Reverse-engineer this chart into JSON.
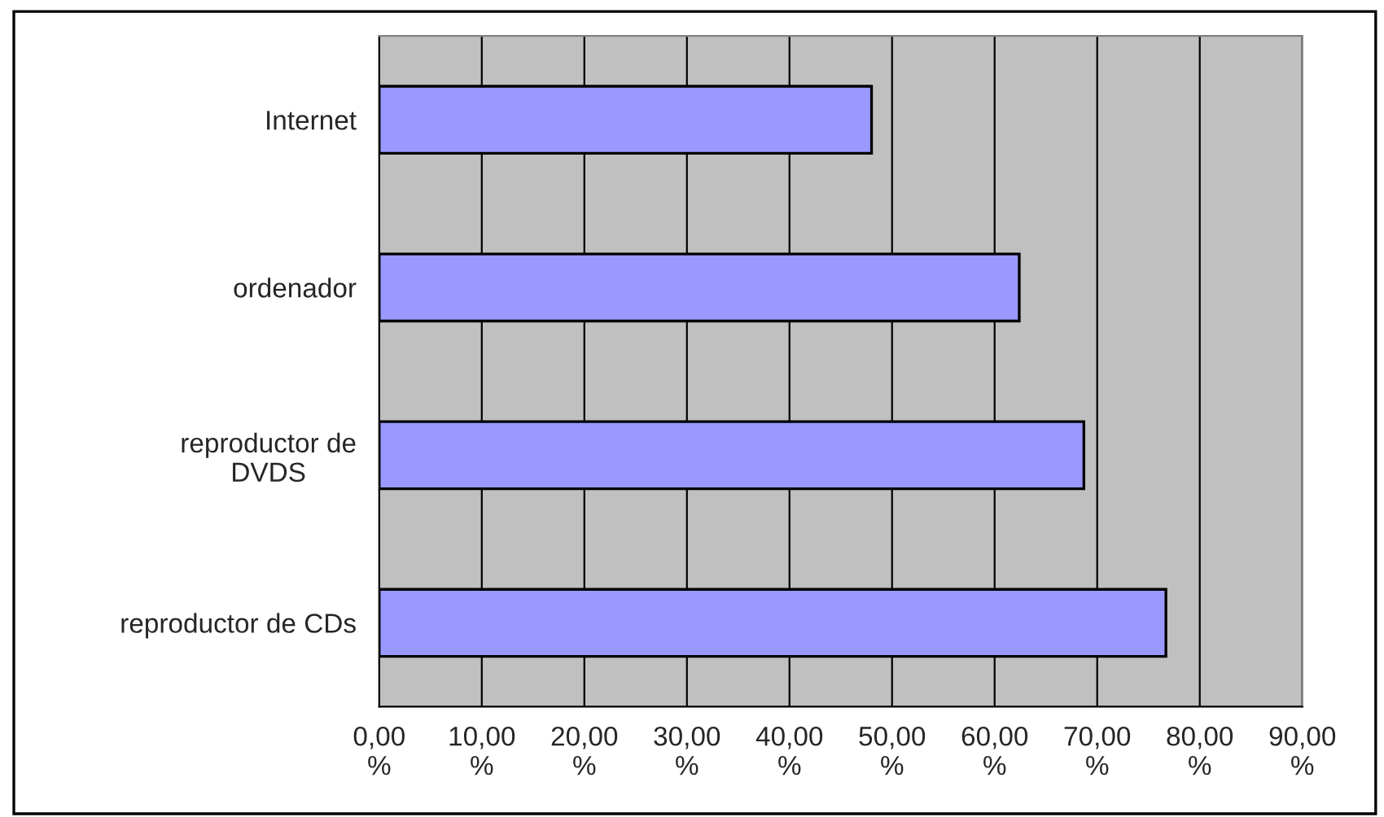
{
  "chart_data": {
    "type": "bar",
    "orientation": "horizontal",
    "categories": [
      "Internet",
      "ordenador",
      "reproductor de\nDVDS",
      "reproductor de CDs"
    ],
    "values": [
      48.0,
      62.4,
      68.7,
      76.7
    ],
    "color": "#9999ff",
    "xlim": [
      0,
      90
    ],
    "xticks": [
      {
        "value": 0,
        "label": "0,00\n%"
      },
      {
        "value": 10,
        "label": "10,00\n%"
      },
      {
        "value": 20,
        "label": "20,00\n%"
      },
      {
        "value": 30,
        "label": "30,00\n%"
      },
      {
        "value": 40,
        "label": "40,00\n%"
      },
      {
        "value": 50,
        "label": "50,00\n%"
      },
      {
        "value": 60,
        "label": "60,00\n%"
      },
      {
        "value": 70,
        "label": "70,00\n%"
      },
      {
        "value": 80,
        "label": "80,00\n%"
      },
      {
        "value": 90,
        "label": "90,00\n%"
      }
    ],
    "grid": "x",
    "legend": false
  }
}
